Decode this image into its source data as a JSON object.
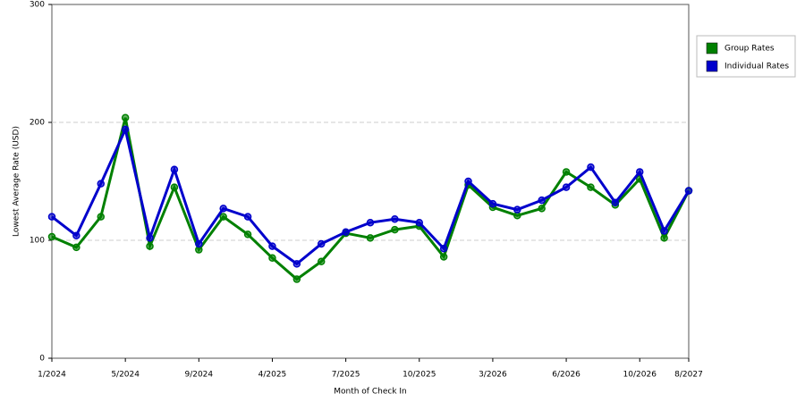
{
  "chart_data": {
    "type": "line",
    "x_label": "Month of Check In",
    "y_label": "Lowest Average Rate (USD)",
    "categories": [
      "1/2024",
      null,
      null,
      "5/2024",
      null,
      null,
      "9/2024",
      null,
      null,
      "4/2025",
      null,
      null,
      "7/2025",
      null,
      null,
      "10/2025",
      null,
      null,
      "3/2026",
      null,
      null,
      "6/2026",
      null,
      null,
      "10/2026",
      null,
      "8/2027"
    ],
    "series": [
      {
        "name": "Group Rates",
        "color": "#008000",
        "values": [
          103,
          94,
          120,
          204,
          95,
          145,
          92,
          120,
          105,
          85,
          67,
          82,
          106,
          102,
          109,
          112,
          86,
          147,
          128,
          121,
          127,
          158,
          145,
          130,
          152,
          102,
          142
        ]
      },
      {
        "name": "Individual Rates",
        "color": "#0000cc",
        "values": [
          120,
          104,
          148,
          194,
          102,
          160,
          97,
          127,
          120,
          95,
          80,
          97,
          107,
          115,
          118,
          115,
          93,
          150,
          131,
          126,
          134,
          145,
          162,
          132,
          158,
          108,
          142
        ]
      }
    ],
    "ylim": [
      0,
      300
    ],
    "yticks": [
      0,
      100,
      200,
      300
    ],
    "grid": true,
    "legend": "right"
  }
}
